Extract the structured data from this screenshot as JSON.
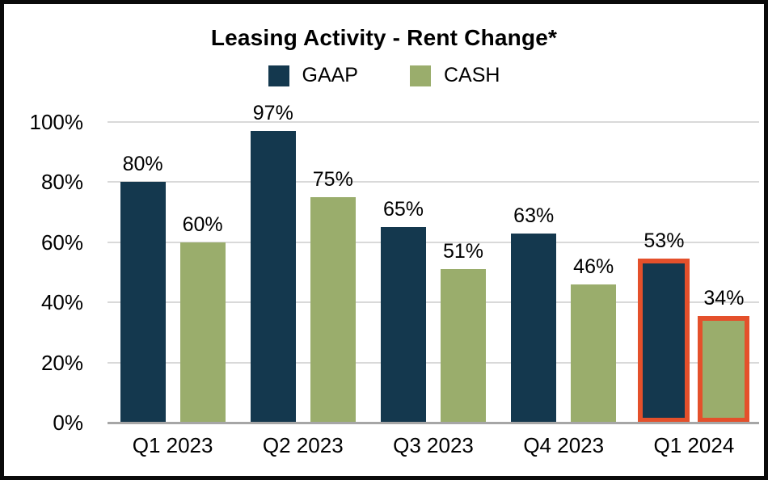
{
  "window": {
    "background_color": "#ffffff",
    "frame_border_color": "#0a0a0a"
  },
  "chart_data": {
    "type": "bar",
    "title": "Leasing Activity - Rent Change*",
    "categories": [
      "Q1 2023",
      "Q2 2023",
      "Q3 2023",
      "Q4 2023",
      "Q1 2024"
    ],
    "series": [
      {
        "name": "GAAP",
        "color": "#14384e",
        "values": [
          80,
          97,
          65,
          63,
          53
        ],
        "labels": [
          "80%",
          "97%",
          "65%",
          "63%",
          "53%"
        ]
      },
      {
        "name": "CASH",
        "color": "#9aad6c",
        "values": [
          60,
          75,
          51,
          46,
          34
        ],
        "labels": [
          "60%",
          "75%",
          "51%",
          "46%",
          "34%"
        ]
      }
    ],
    "xlabel": "",
    "ylabel": "",
    "ylim": [
      0,
      100
    ],
    "y_ticks": [
      {
        "value": 0,
        "label": "0%"
      },
      {
        "value": 20,
        "label": "20%"
      },
      {
        "value": 40,
        "label": "40%"
      },
      {
        "value": 60,
        "label": "60%"
      },
      {
        "value": 80,
        "label": "80%"
      },
      {
        "value": 100,
        "label": "100%"
      }
    ],
    "grid": true,
    "gridline_color": "#d9d9d9",
    "axis_line_color": "#a6a6a6",
    "legend_position": "top-center",
    "highlight": {
      "category": "Q1 2024",
      "outline_color": "#e4502b"
    }
  }
}
